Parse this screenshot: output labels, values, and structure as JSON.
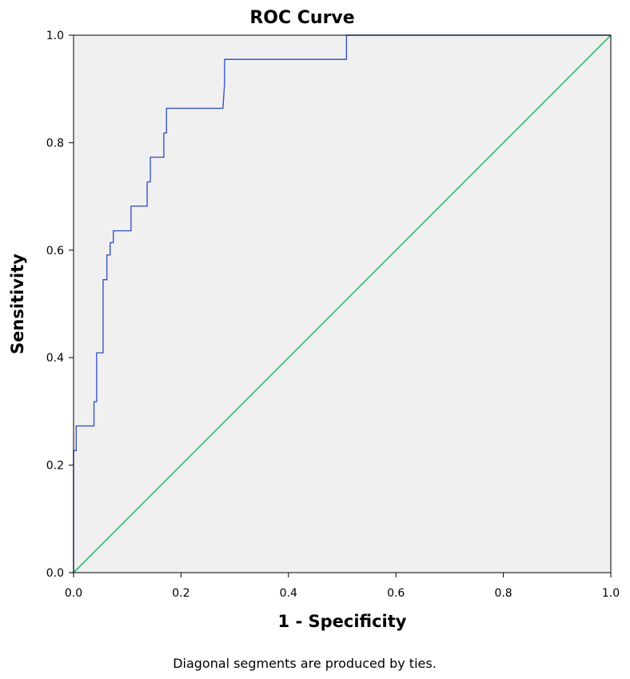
{
  "chart_data": {
    "type": "line",
    "title": "ROC Curve",
    "xlabel": "1 - Specificity",
    "ylabel": "Sensitivity",
    "xlim": [
      0.0,
      1.0
    ],
    "ylim": [
      0.0,
      1.0
    ],
    "x_ticks": [
      "0.0",
      "0.2",
      "0.4",
      "0.6",
      "0.8",
      "1.0"
    ],
    "y_ticks": [
      "0.0",
      "0.2",
      "0.4",
      "0.6",
      "0.8",
      "1.0"
    ],
    "grid": false,
    "legend": "none",
    "footnote": "Diagonal segments are produced by ties.",
    "colors": {
      "plot_background": "#f0f0f0",
      "roc": "#3a56c8",
      "reference": "#22c26a"
    },
    "series": [
      {
        "role": "roc",
        "x": [
          0.0,
          0.0,
          0.005,
          0.005,
          0.038,
          0.038,
          0.043,
          0.043,
          0.055,
          0.055,
          0.062,
          0.062,
          0.068,
          0.068,
          0.074,
          0.074,
          0.107,
          0.107,
          0.137,
          0.137,
          0.143,
          0.143,
          0.168,
          0.168,
          0.173,
          0.173,
          0.278,
          0.281,
          0.281,
          0.508,
          0.508,
          1.0
        ],
        "y": [
          0.0,
          0.227,
          0.227,
          0.273,
          0.273,
          0.318,
          0.318,
          0.409,
          0.409,
          0.545,
          0.545,
          0.591,
          0.591,
          0.614,
          0.614,
          0.636,
          0.636,
          0.682,
          0.682,
          0.727,
          0.727,
          0.773,
          0.773,
          0.818,
          0.818,
          0.864,
          0.864,
          0.909,
          0.955,
          0.955,
          1.0,
          1.0
        ]
      },
      {
        "role": "reference",
        "x": [
          0.0,
          1.0
        ],
        "y": [
          0.0,
          1.0
        ]
      }
    ]
  }
}
